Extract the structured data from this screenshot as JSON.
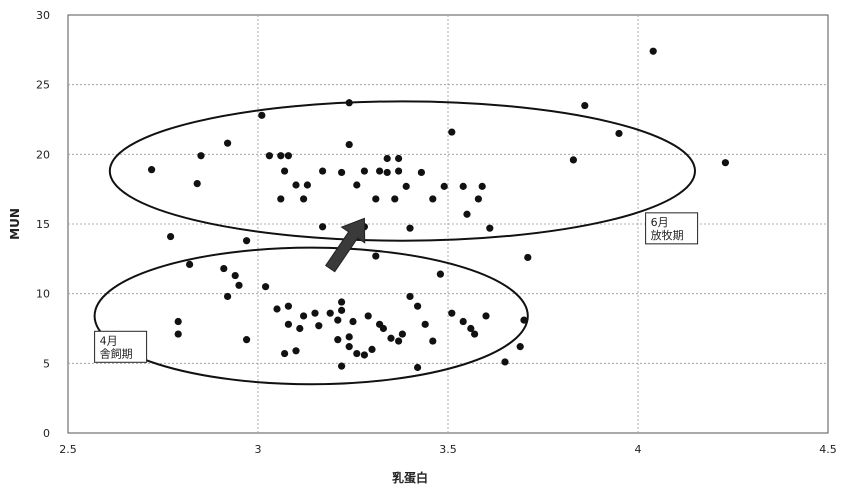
{
  "chart_data": {
    "type": "scatter",
    "xlabel": "乳蛋白",
    "ylabel": "MUN",
    "xlim": [
      2.5,
      4.5
    ],
    "ylim": [
      0,
      30
    ],
    "xticks": [
      2.5,
      3,
      3.5,
      4,
      4.5
    ],
    "yticks": [
      0,
      5,
      10,
      15,
      20,
      25,
      30
    ],
    "xtick_labels": [
      "2.5",
      "3",
      "3.5",
      "4",
      "4.5"
    ],
    "ytick_labels": [
      "0",
      "5",
      "10",
      "15",
      "20",
      "25",
      "30"
    ],
    "grid": "horizontal and vertical dotted",
    "colors": {
      "points": "#111111",
      "arrow": "#3a3a3a",
      "ellipse": "#111111"
    },
    "points": [
      {
        "x": 2.72,
        "y": 18.9
      },
      {
        "x": 2.85,
        "y": 19.9
      },
      {
        "x": 2.84,
        "y": 17.9
      },
      {
        "x": 2.92,
        "y": 20.8
      },
      {
        "x": 3.01,
        "y": 22.8
      },
      {
        "x": 3.03,
        "y": 19.9
      },
      {
        "x": 3.06,
        "y": 19.9
      },
      {
        "x": 3.08,
        "y": 19.9
      },
      {
        "x": 3.07,
        "y": 18.8
      },
      {
        "x": 3.1,
        "y": 17.8
      },
      {
        "x": 3.13,
        "y": 17.8
      },
      {
        "x": 3.06,
        "y": 16.8
      },
      {
        "x": 3.12,
        "y": 16.8
      },
      {
        "x": 3.17,
        "y": 18.8
      },
      {
        "x": 3.22,
        "y": 18.7
      },
      {
        "x": 3.24,
        "y": 20.7
      },
      {
        "x": 3.24,
        "y": 23.7
      },
      {
        "x": 3.26,
        "y": 17.8
      },
      {
        "x": 3.28,
        "y": 18.8
      },
      {
        "x": 3.32,
        "y": 18.8
      },
      {
        "x": 3.34,
        "y": 19.7
      },
      {
        "x": 3.34,
        "y": 18.7
      },
      {
        "x": 3.37,
        "y": 19.7
      },
      {
        "x": 3.37,
        "y": 18.8
      },
      {
        "x": 3.31,
        "y": 16.8
      },
      {
        "x": 3.36,
        "y": 16.8
      },
      {
        "x": 3.39,
        "y": 17.7
      },
      {
        "x": 3.43,
        "y": 18.7
      },
      {
        "x": 3.46,
        "y": 16.8
      },
      {
        "x": 3.49,
        "y": 17.7
      },
      {
        "x": 3.51,
        "y": 21.6
      },
      {
        "x": 3.54,
        "y": 17.7
      },
      {
        "x": 3.55,
        "y": 15.7
      },
      {
        "x": 3.58,
        "y": 16.8
      },
      {
        "x": 3.59,
        "y": 17.7
      },
      {
        "x": 3.61,
        "y": 14.7
      },
      {
        "x": 3.4,
        "y": 14.7
      },
      {
        "x": 3.17,
        "y": 14.8
      },
      {
        "x": 3.28,
        "y": 14.8
      },
      {
        "x": 3.31,
        "y": 12.7
      },
      {
        "x": 3.71,
        "y": 12.6
      },
      {
        "x": 3.83,
        "y": 19.6
      },
      {
        "x": 3.86,
        "y": 23.5
      },
      {
        "x": 3.95,
        "y": 21.5
      },
      {
        "x": 4.04,
        "y": 27.4
      },
      {
        "x": 4.23,
        "y": 19.4
      },
      {
        "x": 2.77,
        "y": 14.1
      },
      {
        "x": 2.97,
        "y": 13.8
      },
      {
        "x": 2.82,
        "y": 12.1
      },
      {
        "x": 2.91,
        "y": 11.8
      },
      {
        "x": 2.94,
        "y": 11.3
      },
      {
        "x": 2.95,
        "y": 10.6
      },
      {
        "x": 3.02,
        "y": 10.5
      },
      {
        "x": 2.92,
        "y": 9.8
      },
      {
        "x": 3.05,
        "y": 8.9
      },
      {
        "x": 3.08,
        "y": 9.1
      },
      {
        "x": 3.12,
        "y": 8.4
      },
      {
        "x": 3.15,
        "y": 8.6
      },
      {
        "x": 3.08,
        "y": 7.8
      },
      {
        "x": 3.11,
        "y": 7.5
      },
      {
        "x": 3.16,
        "y": 7.7
      },
      {
        "x": 3.19,
        "y": 8.6
      },
      {
        "x": 3.22,
        "y": 9.4
      },
      {
        "x": 3.22,
        "y": 8.8
      },
      {
        "x": 3.21,
        "y": 8.1
      },
      {
        "x": 3.25,
        "y": 8.0
      },
      {
        "x": 3.21,
        "y": 6.7
      },
      {
        "x": 3.24,
        "y": 6.9
      },
      {
        "x": 3.24,
        "y": 6.2
      },
      {
        "x": 3.26,
        "y": 5.7
      },
      {
        "x": 3.28,
        "y": 5.6
      },
      {
        "x": 3.3,
        "y": 6.0
      },
      {
        "x": 3.29,
        "y": 8.4
      },
      {
        "x": 3.32,
        "y": 7.8
      },
      {
        "x": 3.33,
        "y": 7.5
      },
      {
        "x": 3.35,
        "y": 6.8
      },
      {
        "x": 3.37,
        "y": 6.6
      },
      {
        "x": 3.38,
        "y": 7.1
      },
      {
        "x": 3.4,
        "y": 9.8
      },
      {
        "x": 3.42,
        "y": 9.1
      },
      {
        "x": 3.44,
        "y": 7.8
      },
      {
        "x": 3.46,
        "y": 6.6
      },
      {
        "x": 3.48,
        "y": 11.4
      },
      {
        "x": 3.51,
        "y": 8.6
      },
      {
        "x": 3.54,
        "y": 8.0
      },
      {
        "x": 3.56,
        "y": 7.5
      },
      {
        "x": 3.57,
        "y": 7.1
      },
      {
        "x": 3.6,
        "y": 8.4
      },
      {
        "x": 3.42,
        "y": 4.7
      },
      {
        "x": 3.22,
        "y": 4.8
      },
      {
        "x": 3.1,
        "y": 5.9
      },
      {
        "x": 3.07,
        "y": 5.7
      },
      {
        "x": 2.97,
        "y": 6.7
      },
      {
        "x": 2.79,
        "y": 8.0
      },
      {
        "x": 2.79,
        "y": 7.1
      },
      {
        "x": 3.65,
        "y": 5.1
      },
      {
        "x": 3.69,
        "y": 6.2
      },
      {
        "x": 3.7,
        "y": 8.1
      }
    ],
    "ellipses": [
      {
        "cx": 3.38,
        "cy": 18.8,
        "rx": 0.77,
        "ry": 5.0,
        "name": "june"
      },
      {
        "cx": 3.14,
        "cy": 8.4,
        "rx": 0.57,
        "ry": 4.9,
        "name": "april"
      }
    ],
    "arrow": {
      "from": {
        "x": 3.19,
        "y": 11.8
      },
      "to": {
        "x": 3.28,
        "y": 15.4
      }
    },
    "annotations": [
      {
        "name": "june-label",
        "lines": [
          "6月",
          "放牧期"
        ],
        "x": 4.02,
        "y": 15.8
      },
      {
        "name": "april-label",
        "lines": [
          "4月",
          "舎飼期"
        ],
        "x": 2.57,
        "y": 7.3
      }
    ]
  }
}
